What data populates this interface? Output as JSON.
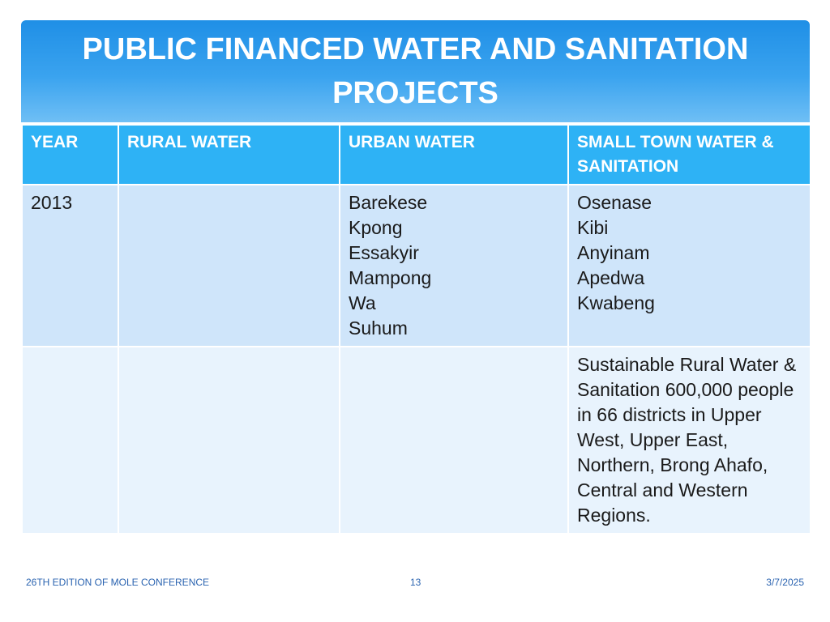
{
  "slide": {
    "title": "PUBLIC FINANCED WATER AND SANITATION PROJECTS"
  },
  "table": {
    "headers": [
      "YEAR",
      "RURAL WATER",
      "URBAN WATER",
      "SMALL TOWN WATER & SANITATION"
    ],
    "rows": [
      {
        "year": "2013",
        "rural_water": [],
        "urban_water": [
          "Barekese",
          "Kpong",
          "Essakyir",
          "Mampong",
          "Wa",
          "Suhum"
        ],
        "small_town": [
          "Osenase",
          "Kibi",
          "Anyinam",
          "Apedwa",
          "Kwabeng"
        ]
      },
      {
        "year": "",
        "rural_water": [],
        "urban_water": [],
        "small_town": [
          "Sustainable Rural Water & Sanitation 600,000 people in 66 districts in Upper West, Upper East, Northern, Brong Ahafo, Central and Western Regions."
        ]
      }
    ]
  },
  "footer": {
    "conference": "26TH EDITION OF MOLE CONFERENCE",
    "page_number": "13",
    "date": "3/7/2025"
  },
  "colors": {
    "title_bar": "#2a9aea",
    "header_row": "#2eb2f5",
    "row_band_1": "#cfe5fa",
    "row_band_2": "#e8f3fd",
    "footer_text": "#2a63b0"
  }
}
